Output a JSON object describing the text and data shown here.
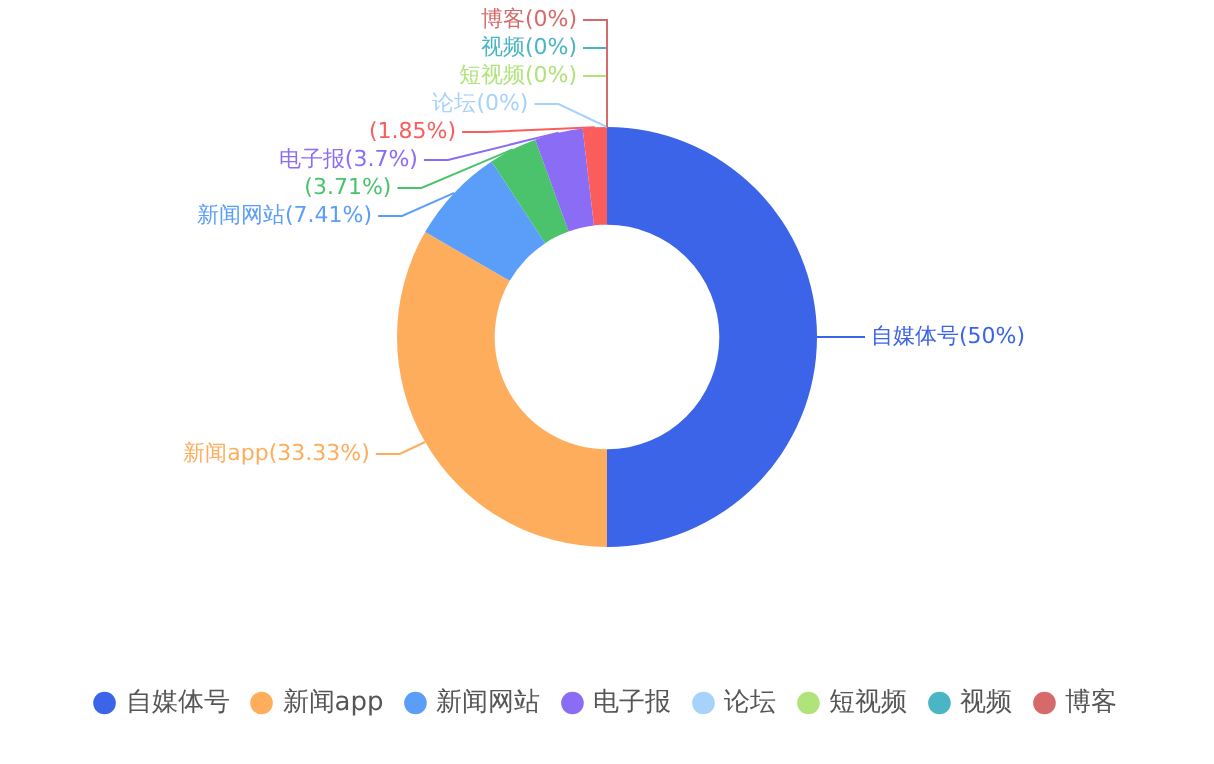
{
  "chart_data": {
    "type": "donut",
    "categories": [
      "自媒体号",
      "新闻app",
      "新闻网站",
      null,
      "电子报",
      null,
      "论坛",
      "短视频",
      "视频",
      "博客"
    ],
    "values": [
      50,
      33.33,
      7.41,
      3.71,
      3.7,
      1.85,
      0,
      0,
      0,
      0
    ],
    "colors": [
      "#3c64e8",
      "#fdad5c",
      "#5b9ef9",
      "#4ac36c",
      "#8a6cf5",
      "#fa5d5c",
      "#a6d2fb",
      "#b0e37a",
      "#4ab5c4",
      "#d66a6a"
    ],
    "value_labels": [
      "自媒体号(50%)",
      "新闻app(33.33%)",
      "新闻网站(7.41%)",
      "(3.71%)",
      "电子报(3.7%)",
      "(1.85%)",
      "论坛(0%)",
      "短视频(0%)",
      "视频(0%)",
      "博客(0%)"
    ],
    "legend": "bottom"
  }
}
